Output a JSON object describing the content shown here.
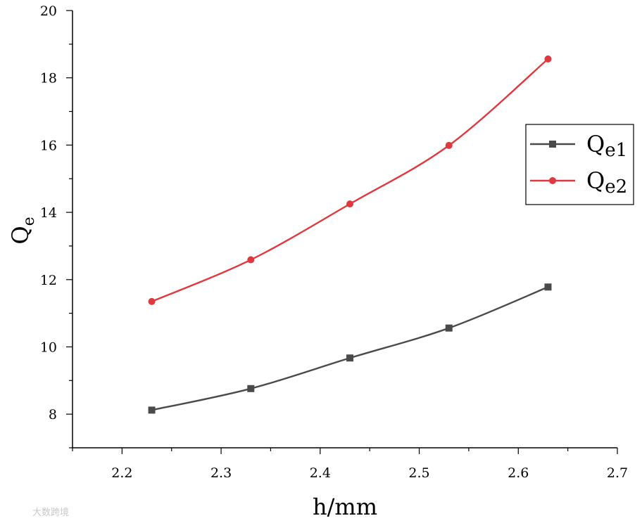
{
  "chart_data": {
    "type": "line",
    "x": [
      2.23,
      2.33,
      2.43,
      2.53,
      2.63
    ],
    "series": [
      {
        "name": "Qe1",
        "name_main": "Q",
        "name_sub": "e1",
        "color": "#4a4a4a",
        "marker": "square",
        "values": [
          8.12,
          8.76,
          9.67,
          10.56,
          11.78
        ]
      },
      {
        "name": "Qe2",
        "name_main": "Q",
        "name_sub": "e2",
        "color": "#e0383e",
        "marker": "circle",
        "values": [
          11.35,
          12.59,
          14.25,
          15.99,
          18.56
        ]
      }
    ],
    "xlabel": "h/mm",
    "ylabel_main": "Q",
    "ylabel_sub": "e",
    "xlim": [
      2.15,
      2.7
    ],
    "ylim": [
      7,
      20
    ],
    "xticks": [
      "2.2",
      "2.3",
      "2.4",
      "2.5",
      "2.6",
      "2.7"
    ],
    "xtick_values": [
      2.2,
      2.3,
      2.4,
      2.5,
      2.6,
      2.7
    ],
    "yticks": [
      "8",
      "10",
      "12",
      "14",
      "16",
      "18",
      "20"
    ],
    "ytick_values": [
      8,
      10,
      12,
      14,
      16,
      18,
      20
    ],
    "grid": false,
    "legend_position": "right-upper"
  },
  "watermark": "大数跨境"
}
